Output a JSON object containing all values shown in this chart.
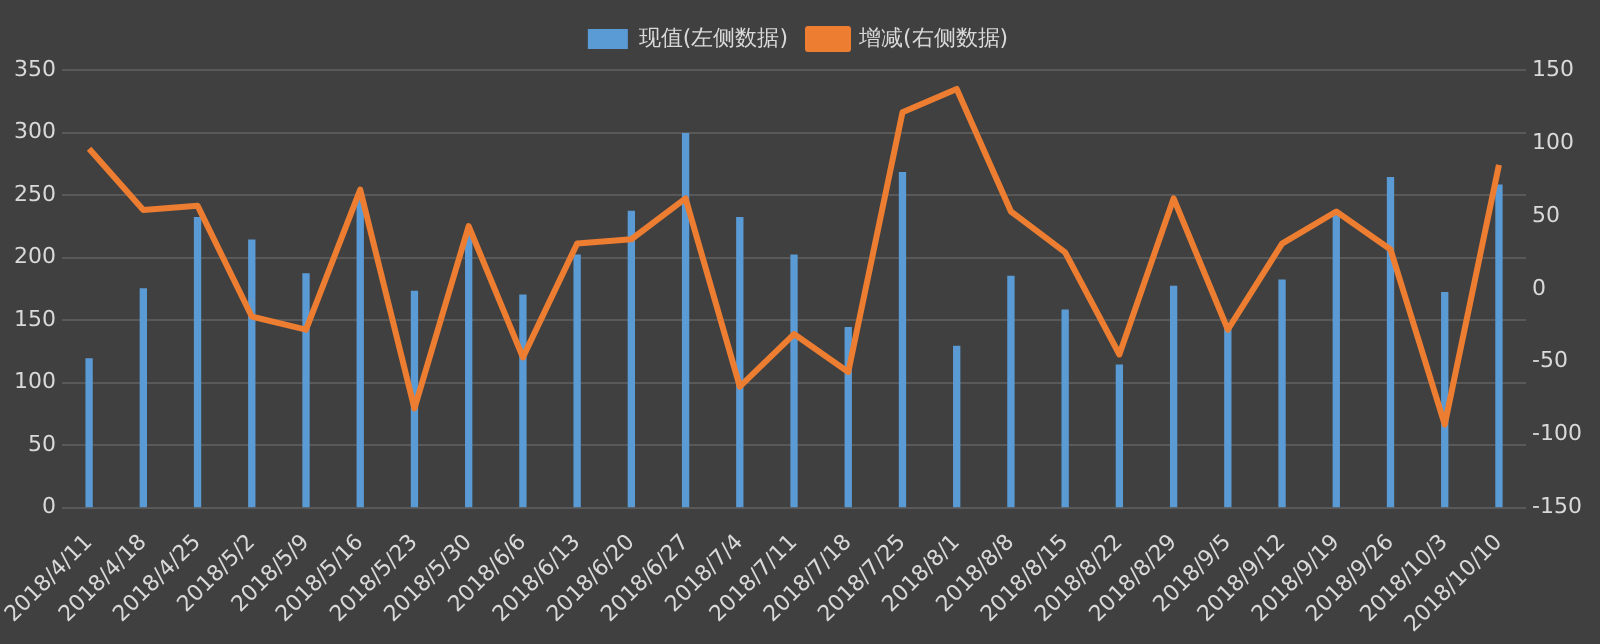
{
  "chart_data": {
    "type": "bar",
    "categories": [
      "2018/4/11",
      "2018/4/18",
      "2018/4/25",
      "2018/5/2",
      "2018/5/9",
      "2018/5/16",
      "2018/5/23",
      "2018/5/30",
      "2018/6/6",
      "2018/6/13",
      "2018/6/20",
      "2018/6/27",
      "2018/7/4",
      "2018/7/11",
      "2018/7/18",
      "2018/7/25",
      "2018/8/1",
      "2018/8/8",
      "2018/8/15",
      "2018/8/22",
      "2018/8/29",
      "2018/9/5",
      "2018/9/12",
      "2018/9/19",
      "2018/9/26",
      "2018/10/3",
      "2018/10/10"
    ],
    "series": [
      {
        "name": "现值(左侧数据)",
        "color": "#5b9bd5",
        "values": [
          119,
          175,
          232,
          214,
          187,
          250,
          173,
          222,
          170,
          202,
          237,
          299,
          232,
          202,
          144,
          268,
          129,
          185,
          158,
          114,
          177,
          143,
          182,
          236,
          264,
          172,
          258
        ]
      },
      {
        "name": "增减(右侧数据)",
        "type": "line",
        "axis": "y2",
        "color": "#ed7d31",
        "values": [
          96,
          54,
          57,
          -19,
          -28,
          68,
          -82,
          43,
          -47,
          31,
          34,
          62,
          -67,
          -31,
          -57,
          121,
          137,
          53,
          25,
          -45,
          62,
          -28,
          31,
          53,
          27,
          -93,
          85
        ]
      }
    ],
    "ylim": [
      0,
      350
    ],
    "yticks": [
      0,
      50,
      100,
      150,
      200,
      250,
      300,
      350
    ],
    "y2lim": [
      -150,
      150
    ],
    "y2ticks": [
      -150,
      -100,
      -50,
      0,
      50,
      100,
      150
    ],
    "grid": "y",
    "legend": "top",
    "marker": "none"
  }
}
